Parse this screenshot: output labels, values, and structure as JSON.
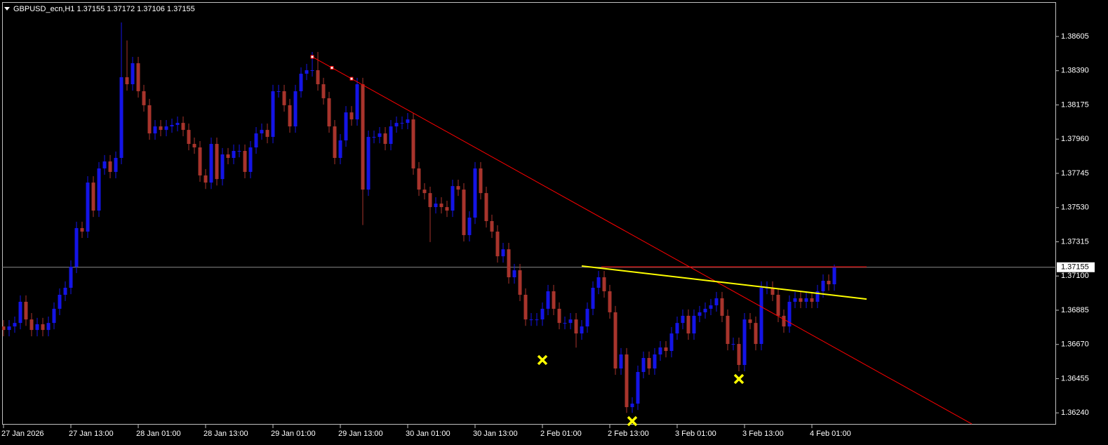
{
  "chart_data": {
    "type": "candlestick",
    "title": "GBPUSD_ecn,H1  1.37155 1.37172 1.37106 1.37155",
    "up_color": "#1414e6",
    "down_color": "#a8342c",
    "open": [
      1.36783,
      1.36761,
      1.36783,
      1.36805,
      1.36938,
      1.36827,
      1.36761,
      1.36797,
      1.36761,
      1.36805,
      1.36894,
      1.36982,
      1.37026,
      1.37158,
      1.37401,
      1.37379,
      1.37687,
      1.37511,
      1.37776,
      1.3782,
      1.37754,
      1.37842,
      1.38349,
      1.38305,
      1.38437,
      1.38261,
      1.38173,
      1.37996,
      1.3804,
      1.38018,
      1.3804,
      1.38049,
      1.38062,
      1.38018,
      1.3793,
      1.37908,
      1.37732,
      1.37687,
      1.3793,
      1.37709,
      1.37864,
      1.37842,
      1.37886,
      1.37886,
      1.37754,
      1.37908,
      1.37996,
      1.38018,
      1.37974,
      1.38261,
      1.38261,
      1.38173,
      1.3804,
      1.38261,
      1.38371,
      1.38393,
      1.38393,
      1.38305,
      1.38217,
      1.3804,
      1.37842,
      1.37952,
      1.38128,
      1.38084,
      1.38305,
      1.37643,
      1.37974,
      1.37974,
      1.37996,
      1.3793,
      1.3804,
      1.38062,
      1.38062,
      1.38084,
      1.37776,
      1.37643,
      1.37621,
      1.37533,
      1.37555,
      1.37533,
      1.37511,
      1.37665,
      1.37643,
      1.37357,
      1.37467,
      1.37776,
      1.37621,
      1.37445,
      1.37379,
      1.37224,
      1.37268,
      1.37092,
      1.37136,
      1.36982,
      1.36827,
      1.36827,
      1.36827,
      1.36894,
      1.37004,
      1.36894,
      1.36805,
      1.36805,
      1.36827,
      1.36739,
      1.36783,
      1.36894,
      1.37026,
      1.37092,
      1.37004,
      1.36872,
      1.36519,
      1.36607,
      1.36276,
      1.36298,
      1.36497,
      1.36585,
      1.36519,
      1.36607,
      1.36651,
      1.36629,
      1.36739,
      1.36805,
      1.3685,
      1.36739,
      1.3685,
      1.36872,
      1.36894,
      1.36916,
      1.3696,
      1.3685,
      1.36673,
      1.36673,
      1.36541,
      1.36827,
      1.36805,
      1.36673,
      1.37026,
      1.37026,
      1.36982,
      1.3685,
      1.36783,
      1.36938,
      1.3696,
      1.36938,
      1.3696,
      1.36938,
      1.37004,
      1.3707,
      1.37048
    ],
    "high": [
      1.36823,
      1.36823,
      1.36845,
      1.36978,
      1.36978,
      1.36867,
      1.36837,
      1.36837,
      1.36845,
      1.36934,
      1.37022,
      1.37066,
      1.37198,
      1.37441,
      1.37441,
      1.37727,
      1.37727,
      1.37816,
      1.3786,
      1.3786,
      1.37882,
      1.38693,
      1.3858,
      1.38477,
      1.38477,
      1.38301,
      1.38213,
      1.3808,
      1.3808,
      1.3808,
      1.38089,
      1.38102,
      1.38102,
      1.38058,
      1.3797,
      1.37948,
      1.37772,
      1.3797,
      1.3797,
      1.37904,
      1.37904,
      1.37926,
      1.37926,
      1.37926,
      1.37948,
      1.38036,
      1.38058,
      1.38058,
      1.38301,
      1.38301,
      1.38301,
      1.38213,
      1.38301,
      1.38411,
      1.38433,
      1.38508,
      1.38508,
      1.38345,
      1.38257,
      1.3808,
      1.37992,
      1.38168,
      1.38168,
      1.38345,
      1.38345,
      1.38014,
      1.38014,
      1.38036,
      1.38036,
      1.3808,
      1.38102,
      1.38102,
      1.38124,
      1.38124,
      1.37816,
      1.37683,
      1.37661,
      1.37595,
      1.37595,
      1.37573,
      1.37705,
      1.37705,
      1.37683,
      1.37507,
      1.37816,
      1.37816,
      1.37661,
      1.37485,
      1.37419,
      1.37308,
      1.37308,
      1.37176,
      1.37176,
      1.37022,
      1.36867,
      1.36867,
      1.36934,
      1.37044,
      1.37044,
      1.36934,
      1.36845,
      1.36867,
      1.36867,
      1.36823,
      1.36934,
      1.37066,
      1.37132,
      1.37132,
      1.37044,
      1.36912,
      1.36647,
      1.36647,
      1.36338,
      1.36537,
      1.36625,
      1.36625,
      1.36647,
      1.36691,
      1.36691,
      1.36779,
      1.36845,
      1.3689,
      1.3689,
      1.3689,
      1.36912,
      1.36934,
      1.36956,
      1.37,
      1.37,
      1.3689,
      1.36713,
      1.36713,
      1.36867,
      1.36867,
      1.36845,
      1.37066,
      1.37066,
      1.37066,
      1.37022,
      1.3689,
      1.36978,
      1.37,
      1.37,
      1.37,
      1.37,
      1.37044,
      1.3711,
      1.3711,
      1.37172
    ],
    "low": [
      1.36721,
      1.36721,
      1.36743,
      1.36765,
      1.36787,
      1.36721,
      1.36721,
      1.36721,
      1.36721,
      1.36765,
      1.36854,
      1.36942,
      1.36986,
      1.37118,
      1.37339,
      1.37339,
      1.37471,
      1.37471,
      1.37736,
      1.37714,
      1.37714,
      1.37802,
      1.38265,
      1.38265,
      1.38221,
      1.38133,
      1.37956,
      1.37956,
      1.37978,
      1.37978,
      1.38,
      1.38009,
      1.37978,
      1.3789,
      1.37868,
      1.37692,
      1.37647,
      1.37647,
      1.37669,
      1.37669,
      1.37802,
      1.37802,
      1.37846,
      1.37714,
      1.37714,
      1.37868,
      1.37956,
      1.37934,
      1.37934,
      1.38221,
      1.38133,
      1.38,
      1.38,
      1.38221,
      1.38331,
      1.38353,
      1.38265,
      1.38177,
      1.38,
      1.37802,
      1.37802,
      1.37912,
      1.38044,
      1.38044,
      1.3742,
      1.37603,
      1.37934,
      1.37934,
      1.3789,
      1.3789,
      1.38,
      1.38022,
      1.38022,
      1.37736,
      1.37603,
      1.37581,
      1.37313,
      1.37493,
      1.37493,
      1.37471,
      1.37471,
      1.37603,
      1.37317,
      1.37317,
      1.37427,
      1.37581,
      1.37405,
      1.37339,
      1.37184,
      1.37184,
      1.37052,
      1.37052,
      1.36942,
      1.36787,
      1.36787,
      1.36787,
      1.36787,
      1.36854,
      1.36854,
      1.36765,
      1.36765,
      1.36765,
      1.3665,
      1.36699,
      1.36743,
      1.36854,
      1.36986,
      1.36964,
      1.36832,
      1.36479,
      1.36479,
      1.3624,
      1.3624,
      1.36258,
      1.36457,
      1.36479,
      1.36479,
      1.36567,
      1.36589,
      1.36589,
      1.36699,
      1.36765,
      1.36699,
      1.36699,
      1.3681,
      1.36832,
      1.36854,
      1.36876,
      1.3681,
      1.36633,
      1.36633,
      1.36501,
      1.36501,
      1.36765,
      1.36633,
      1.36633,
      1.36986,
      1.36942,
      1.3681,
      1.36743,
      1.36743,
      1.36898,
      1.36898,
      1.36898,
      1.36898,
      1.36898,
      1.36964,
      1.37008,
      1.37008
    ],
    "close": [
      1.36761,
      1.36783,
      1.36805,
      1.36938,
      1.36827,
      1.36761,
      1.36797,
      1.36761,
      1.36805,
      1.36894,
      1.36982,
      1.37026,
      1.37158,
      1.37401,
      1.37379,
      1.37687,
      1.37511,
      1.37776,
      1.3782,
      1.37754,
      1.37842,
      1.38349,
      1.38305,
      1.38437,
      1.38261,
      1.38173,
      1.37996,
      1.3804,
      1.38018,
      1.3804,
      1.38049,
      1.38062,
      1.38018,
      1.3793,
      1.37908,
      1.37732,
      1.37687,
      1.3793,
      1.37709,
      1.37864,
      1.37842,
      1.37886,
      1.37886,
      1.37754,
      1.37908,
      1.37996,
      1.38018,
      1.37974,
      1.38261,
      1.38261,
      1.38173,
      1.3804,
      1.38261,
      1.38371,
      1.38393,
      1.38393,
      1.38305,
      1.38217,
      1.3804,
      1.37842,
      1.37952,
      1.38128,
      1.38084,
      1.38305,
      1.37643,
      1.37974,
      1.37974,
      1.37996,
      1.3793,
      1.3804,
      1.38062,
      1.38062,
      1.38084,
      1.37776,
      1.37643,
      1.37621,
      1.37533,
      1.37555,
      1.37533,
      1.37511,
      1.37665,
      1.37643,
      1.37357,
      1.37467,
      1.37776,
      1.37621,
      1.37445,
      1.37379,
      1.37224,
      1.37268,
      1.37092,
      1.37136,
      1.36982,
      1.36827,
      1.36827,
      1.36827,
      1.36894,
      1.37004,
      1.36894,
      1.36805,
      1.36805,
      1.36827,
      1.36739,
      1.36783,
      1.36894,
      1.37026,
      1.37092,
      1.37004,
      1.36872,
      1.36519,
      1.36607,
      1.36276,
      1.36298,
      1.36497,
      1.36585,
      1.36519,
      1.36607,
      1.36651,
      1.36629,
      1.36739,
      1.36805,
      1.3685,
      1.36739,
      1.3685,
      1.36872,
      1.36894,
      1.36916,
      1.3696,
      1.3685,
      1.36673,
      1.36673,
      1.36541,
      1.36827,
      1.36805,
      1.36673,
      1.37026,
      1.37026,
      1.36982,
      1.3685,
      1.36783,
      1.36938,
      1.3696,
      1.36938,
      1.3696,
      1.36938,
      1.37004,
      1.3707,
      1.37048,
      1.37155
    ],
    "xlim": [
      -0.25,
      187.5
    ],
    "xticks": [
      {
        "value": 0,
        "label": "27 Jan 2026"
      },
      {
        "value": 12,
        "label": "27 Jan 13:00"
      },
      {
        "value": 24,
        "label": "28 Jan 01:00"
      },
      {
        "value": 36,
        "label": "28 Jan 13:00"
      },
      {
        "value": 48,
        "label": "29 Jan 01:00"
      },
      {
        "value": 60,
        "label": "29 Jan 13:00"
      },
      {
        "value": 72,
        "label": "30 Jan 01:00"
      },
      {
        "value": 84,
        "label": "30 Jan 13:00"
      },
      {
        "value": 96,
        "label": "2 Feb 01:00"
      },
      {
        "value": 108,
        "label": "2 Feb 13:00"
      },
      {
        "value": 120,
        "label": "3 Feb 01:00"
      },
      {
        "value": 132,
        "label": "3 Feb 13:00"
      },
      {
        "value": 144,
        "label": "4 Feb 01:00"
      }
    ],
    "ylim": [
      1.36166,
      1.38821
    ],
    "yticks": [
      1.38605,
      {
        "value": 1.3839,
        "label": "1.38390"
      },
      1.38175,
      {
        "value": 1.3796,
        "label": "1.37960"
      },
      1.37745,
      {
        "value": 1.3753,
        "label": "1.37530"
      },
      1.37315,
      {
        "value": 1.371,
        "label": "1.37100"
      },
      1.36885,
      {
        "value": 1.3667,
        "label": "1.36670"
      },
      1.36455,
      {
        "value": 1.3624,
        "label": "1.36240"
      }
    ],
    "grid": false,
    "last_price": 1.37155,
    "last_price_color": "#8c8c8c",
    "trendlines": [
      {
        "color": "#ff0000",
        "x": [
          55,
          172.5
        ],
        "y": [
          1.38477,
          1.3617
        ],
        "handles": [
          55,
          58.5,
          62
        ]
      },
      {
        "color": "#ffff00",
        "x": [
          103,
          153.75
        ],
        "y": [
          1.37163,
          1.36955
        ]
      },
      {
        "color": "#ff0000",
        "x": [
          106.5,
          153.75
        ],
        "y": [
          1.37158,
          1.37158
        ]
      }
    ],
    "markers": {
      "color": "#ffff00",
      "x": [
        96,
        112,
        131
      ],
      "y": [
        1.36572,
        1.36188,
        1.36453
      ]
    }
  }
}
